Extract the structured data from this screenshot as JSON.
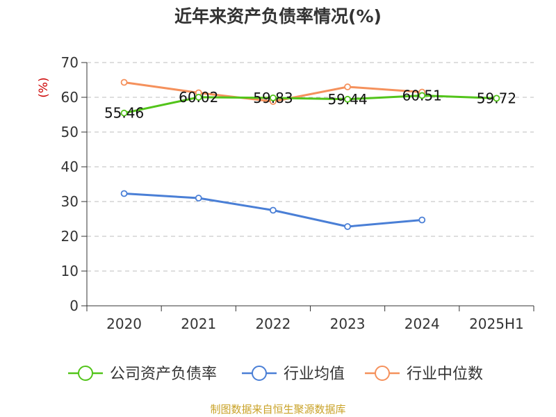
{
  "chart_data": {
    "type": "line",
    "title": "近年来资产负债率情况(%)",
    "ylabel": "(%)",
    "categories": [
      "2020",
      "2021",
      "2022",
      "2023",
      "2024",
      "2025H1"
    ],
    "ylim": [
      0,
      70
    ],
    "yticks": [
      0,
      10,
      20,
      30,
      40,
      50,
      60,
      70
    ],
    "grid": true,
    "legend_position": "bottom",
    "series": [
      {
        "name": "公司资产负债率",
        "color": "#52c41a",
        "values": [
          55.46,
          60.02,
          59.83,
          59.44,
          60.51,
          59.72
        ],
        "labels": [
          "55.46",
          "60.02",
          "59.83",
          "59.44",
          "60.51",
          "59.72"
        ]
      },
      {
        "name": "行业均值",
        "color": "#4a7fd6",
        "values": [
          32.3,
          31.0,
          27.5,
          22.8,
          24.7,
          null
        ]
      },
      {
        "name": "行业中位数",
        "color": "#f5915c",
        "values": [
          64.3,
          61.3,
          58.8,
          63.0,
          61.5,
          null
        ]
      }
    ]
  },
  "source": "制图数据来自恒生聚源数据库"
}
